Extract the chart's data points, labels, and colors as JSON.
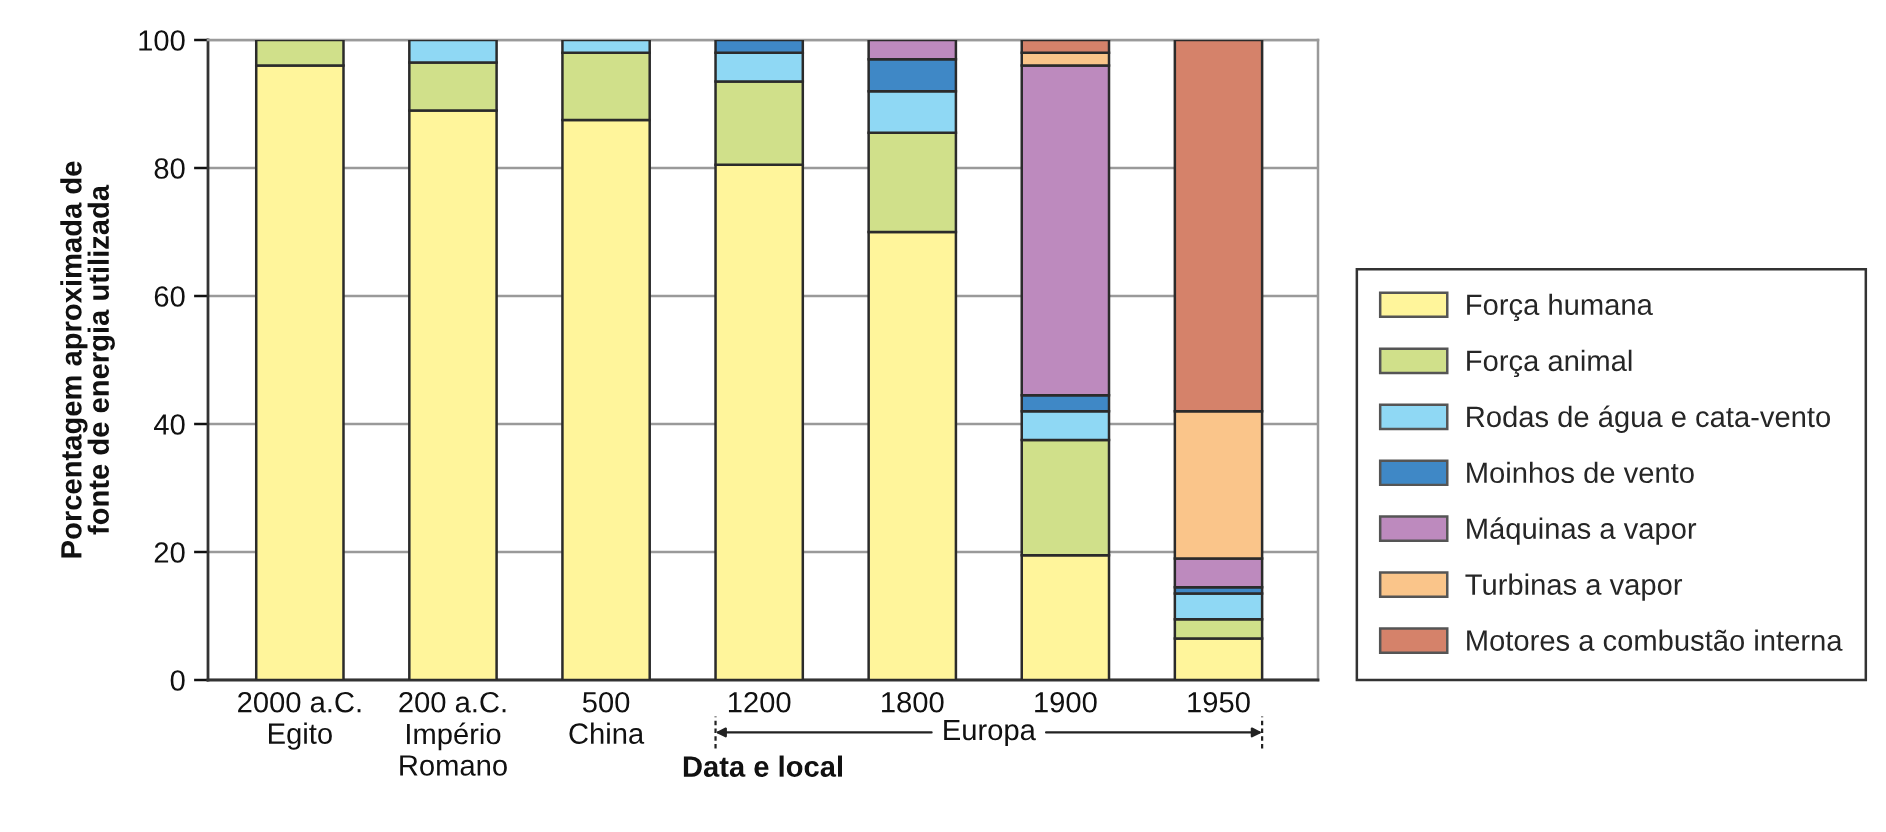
{
  "chart_data": {
    "type": "bar",
    "stacked": true,
    "categories": [
      "2000 a.C.\nEgito",
      "200 a.C.\nImpério\nRomano",
      "500\nChina",
      "1200",
      "1800",
      "1900",
      "1950"
    ],
    "xlabel": "Data e local",
    "ylabel": "Porcentagem aproximada de\nfonte de energia utilizada",
    "ylim": [
      0,
      100
    ],
    "yticks": [
      0,
      20,
      40,
      60,
      80,
      100
    ],
    "grid": "y",
    "legend": "right",
    "annotations": [
      "Europa"
    ],
    "series": [
      {
        "name": "Força humana",
        "color": "#fff59b",
        "values": [
          96,
          89,
          87.5,
          80.5,
          70,
          19.5,
          6.5
        ]
      },
      {
        "name": "Força animal",
        "color": "#d0e08a",
        "values": [
          4,
          7.5,
          10.5,
          13,
          15.5,
          18,
          3
        ]
      },
      {
        "name": "Rodas de água e cata-vento",
        "color": "#8fd8f4",
        "values": [
          null,
          3.5,
          2,
          4.5,
          6.5,
          4.5,
          4
        ]
      },
      {
        "name": "Moinhos de vento",
        "color": "#3f88c6",
        "values": [
          null,
          null,
          null,
          2,
          5,
          2.5,
          1
        ]
      },
      {
        "name": "Máquinas a vapor",
        "color": "#bd8abe",
        "values": [
          null,
          null,
          null,
          null,
          3,
          51.5,
          4.5
        ]
      },
      {
        "name": "Turbinas a vapor",
        "color": "#fac58a",
        "values": [
          null,
          null,
          null,
          null,
          null,
          2,
          23
        ]
      },
      {
        "name": "Motores a combustão interna",
        "color": "#d5826a",
        "values": [
          null,
          null,
          null,
          null,
          null,
          2,
          58
        ]
      }
    ]
  }
}
